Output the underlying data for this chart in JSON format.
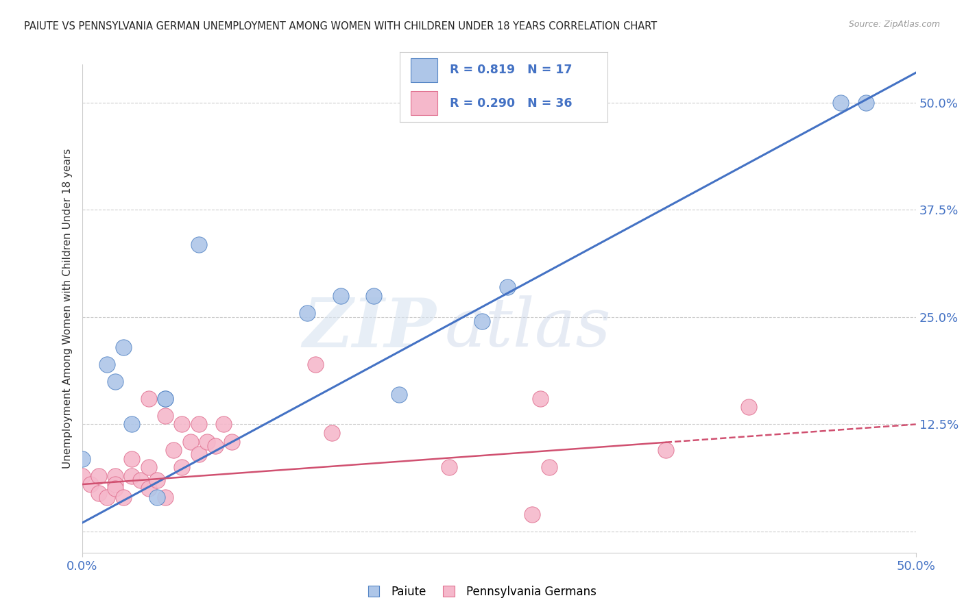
{
  "title": "PAIUTE VS PENNSYLVANIA GERMAN UNEMPLOYMENT AMONG WOMEN WITH CHILDREN UNDER 18 YEARS CORRELATION CHART",
  "source": "Source: ZipAtlas.com",
  "ylabel": "Unemployment Among Women with Children Under 18 years",
  "xlim": [
    0.0,
    0.5
  ],
  "ylim": [
    -0.025,
    0.545
  ],
  "yticks": [
    0.0,
    0.125,
    0.25,
    0.375,
    0.5
  ],
  "ytick_labels": [
    "",
    "12.5%",
    "25.0%",
    "37.5%",
    "50.0%"
  ],
  "paiute_color": "#aec6e8",
  "paiute_edge_color": "#5585c5",
  "pa_german_color": "#f5b8cb",
  "pa_german_edge_color": "#e07090",
  "paiute_line_color": "#4472c4",
  "pa_german_line_color": "#d05070",
  "legend_paiute_fill": "#aec6e8",
  "legend_pa_fill": "#f5b8cb",
  "legend_text_color": "#4472c4",
  "paiute_R": "0.819",
  "paiute_N": "17",
  "pa_german_R": "0.290",
  "pa_german_N": "36",
  "paiute_points": [
    [
      0.0,
      0.085
    ],
    [
      0.015,
      0.195
    ],
    [
      0.02,
      0.175
    ],
    [
      0.025,
      0.215
    ],
    [
      0.03,
      0.125
    ],
    [
      0.045,
      0.04
    ],
    [
      0.05,
      0.155
    ],
    [
      0.07,
      0.335
    ],
    [
      0.05,
      0.155
    ],
    [
      0.135,
      0.255
    ],
    [
      0.155,
      0.275
    ],
    [
      0.175,
      0.275
    ],
    [
      0.19,
      0.16
    ],
    [
      0.24,
      0.245
    ],
    [
      0.255,
      0.285
    ],
    [
      0.455,
      0.5
    ],
    [
      0.47,
      0.5
    ]
  ],
  "pa_german_points": [
    [
      0.0,
      0.065
    ],
    [
      0.005,
      0.055
    ],
    [
      0.01,
      0.065
    ],
    [
      0.01,
      0.045
    ],
    [
      0.015,
      0.04
    ],
    [
      0.02,
      0.065
    ],
    [
      0.02,
      0.055
    ],
    [
      0.02,
      0.05
    ],
    [
      0.025,
      0.04
    ],
    [
      0.03,
      0.085
    ],
    [
      0.03,
      0.065
    ],
    [
      0.035,
      0.06
    ],
    [
      0.04,
      0.05
    ],
    [
      0.04,
      0.155
    ],
    [
      0.04,
      0.075
    ],
    [
      0.045,
      0.06
    ],
    [
      0.05,
      0.04
    ],
    [
      0.05,
      0.135
    ],
    [
      0.055,
      0.095
    ],
    [
      0.06,
      0.075
    ],
    [
      0.06,
      0.125
    ],
    [
      0.065,
      0.105
    ],
    [
      0.07,
      0.09
    ],
    [
      0.07,
      0.125
    ],
    [
      0.075,
      0.105
    ],
    [
      0.08,
      0.1
    ],
    [
      0.085,
      0.125
    ],
    [
      0.09,
      0.105
    ],
    [
      0.14,
      0.195
    ],
    [
      0.15,
      0.115
    ],
    [
      0.22,
      0.075
    ],
    [
      0.275,
      0.155
    ],
    [
      0.28,
      0.075
    ],
    [
      0.35,
      0.095
    ],
    [
      0.4,
      0.145
    ],
    [
      0.27,
      0.02
    ]
  ],
  "paiute_line_x": [
    0.0,
    0.5
  ],
  "paiute_line_y": [
    0.01,
    0.535
  ],
  "pa_german_line_x": [
    0.0,
    0.5
  ],
  "pa_german_line_y": [
    0.055,
    0.125
  ],
  "pa_german_line_dash_start": 0.35,
  "watermark_zip": "ZIP",
  "watermark_atlas": "atlas",
  "background_color": "#ffffff",
  "grid_color": "#cccccc",
  "axis_label_color": "#4472c4"
}
